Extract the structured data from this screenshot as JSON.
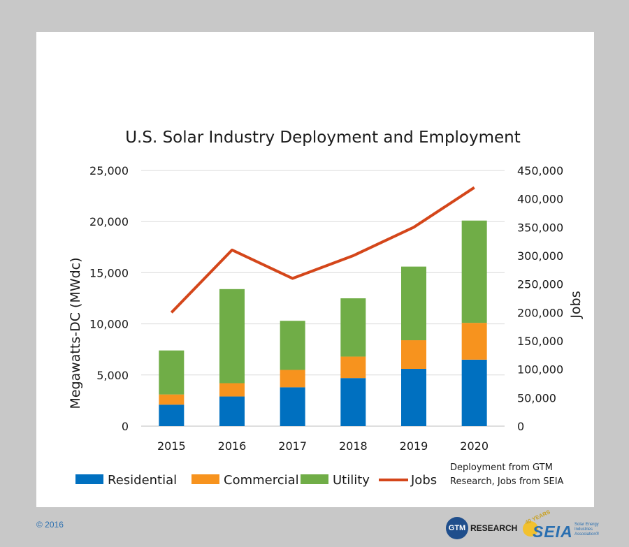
{
  "chart_data": {
    "type": "bar",
    "title": "U.S. Solar Industry Deployment and Employment",
    "categories": [
      "2015",
      "2016",
      "2017",
      "2018",
      "2019",
      "2020"
    ],
    "series": [
      {
        "name": "Residential",
        "color": "#0070c0",
        "values": [
          2100,
          2900,
          3800,
          4700,
          5600,
          6500
        ]
      },
      {
        "name": "Commercial",
        "color": "#f7931e",
        "values": [
          1000,
          1300,
          1700,
          2100,
          2800,
          3600
        ]
      },
      {
        "name": "Utility",
        "color": "#70ad47",
        "values": [
          4300,
          9200,
          4800,
          5700,
          7200,
          10000
        ]
      }
    ],
    "line_series": {
      "name": "Jobs",
      "color": "#d4461a",
      "values": [
        200000,
        310000,
        260000,
        300000,
        350000,
        420000
      ]
    },
    "ylabel": "Megawatts-DC (MWdc)",
    "y2label": "Jobs",
    "ylim": [
      0,
      25000
    ],
    "y2lim": [
      0,
      450000
    ],
    "yticks": [
      "0",
      "5,000",
      "10,000",
      "15,000",
      "20,000",
      "25,000"
    ],
    "y2ticks": [
      "0",
      "50,000",
      "100,000",
      "150,000",
      "200,000",
      "250,000",
      "300,000",
      "350,000",
      "400,000",
      "450,000"
    ],
    "grid": true,
    "legend": "bottom",
    "source_note": [
      "Deployment from GTM",
      "Research, Jobs from SEIA"
    ]
  },
  "footer": {
    "copyright": "© 2016",
    "gtm_badge": "GTM",
    "gtm_word": "RESEARCH",
    "seia_years": "40 YEARS",
    "seia_mark": "SEIA",
    "seia_sub": "Solar Energy Industries Association®"
  }
}
